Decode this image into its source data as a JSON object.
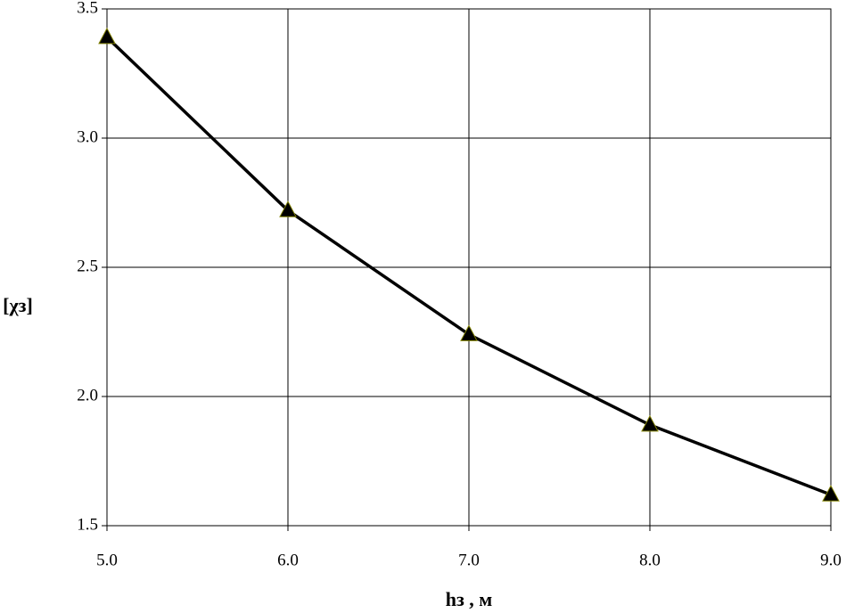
{
  "chart_data": {
    "type": "line",
    "x_label": "hз , м",
    "y_label": "[χз]",
    "x": [
      5,
      6,
      7,
      8,
      9
    ],
    "series": [
      {
        "color": "#000000",
        "values": [
          3.39,
          2.72,
          2.24,
          1.89,
          1.62
        ]
      }
    ],
    "xlim": [
      5,
      9
    ],
    "xticks": [
      {
        "value": 5,
        "label": "5.0"
      },
      {
        "value": 6,
        "label": "6.0"
      },
      {
        "value": 7,
        "label": "7.0"
      },
      {
        "value": 8,
        "label": "8.0"
      },
      {
        "value": 9,
        "label": "9.0"
      }
    ],
    "ylim": [
      1.5,
      3.5
    ],
    "yticks": [
      1.5,
      {
        "value": 2,
        "label": "2.0"
      },
      2.5,
      {
        "value": 3,
        "label": "3.0"
      },
      3.5
    ],
    "grid": true,
    "marker": "triangle"
  }
}
